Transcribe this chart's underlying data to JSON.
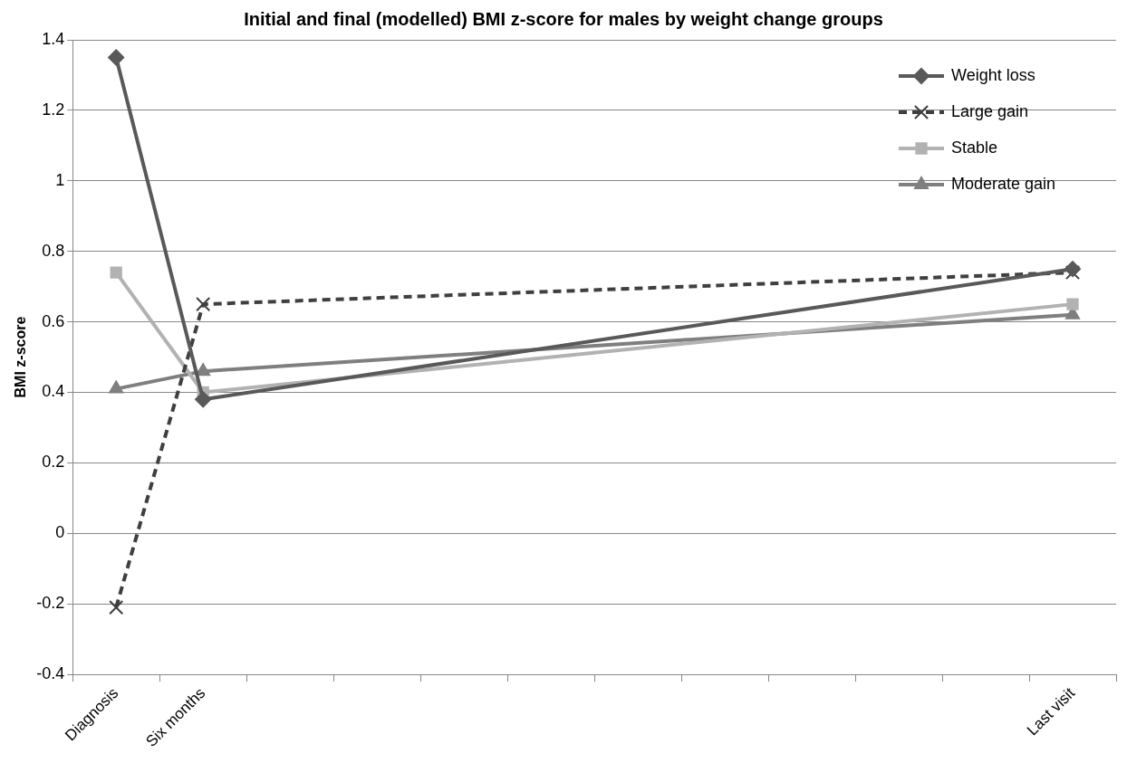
{
  "chart_data": {
    "type": "line",
    "title": "Initial and final (modelled) BMI z-score for males by weight change groups",
    "ylabel": "BMI z-score",
    "categories": [
      "Diagnosis",
      "Six months",
      null,
      null,
      null,
      null,
      null,
      null,
      null,
      null,
      null,
      "Last visit"
    ],
    "series": [
      {
        "name": "Weight loss",
        "color": "#595959",
        "marker": "diamond",
        "line_style": "solid",
        "values": [
          1.35,
          0.38,
          null,
          null,
          null,
          null,
          null,
          null,
          null,
          null,
          null,
          0.75
        ]
      },
      {
        "name": "Large gain",
        "color": "#3f3f3f",
        "marker": "cross",
        "line_style": "dashed",
        "values": [
          -0.21,
          0.65,
          null,
          null,
          null,
          null,
          null,
          null,
          null,
          null,
          null,
          0.74
        ]
      },
      {
        "name": "Stable",
        "color": "#b2b2b2",
        "marker": "square",
        "line_style": "solid",
        "values": [
          0.74,
          0.4,
          null,
          null,
          null,
          null,
          null,
          null,
          null,
          null,
          null,
          0.65
        ]
      },
      {
        "name": "Moderate gain",
        "color": "#7f7f7f",
        "marker": "triangle",
        "line_style": "solid",
        "values": [
          0.41,
          0.46,
          null,
          null,
          null,
          null,
          null,
          null,
          null,
          null,
          null,
          0.62
        ]
      }
    ],
    "ylim": [
      -0.4,
      1.4
    ],
    "yticks": [
      -0.4,
      -0.2,
      0,
      0.2,
      0.4,
      0.6,
      0.8,
      1,
      1.2,
      1.4
    ],
    "grid": "y",
    "legend": "top right"
  }
}
